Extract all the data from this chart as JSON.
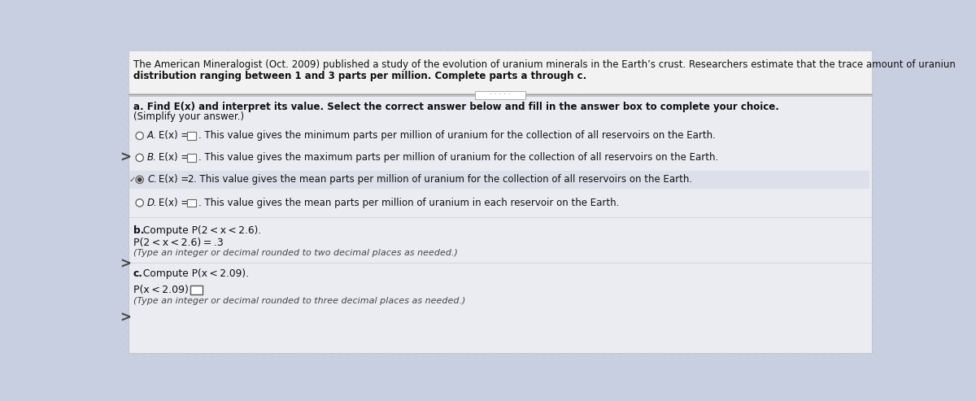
{
  "bg_color": "#c8cfe0",
  "header_bg": "#f2f2f2",
  "content_bg": "#e8eaef",
  "content_bg2": "#d8dce8",
  "divider_color": "#999999",
  "title_line1": "The American Mineralogist (Oct. 2009) published a study of the evolution of uranium minerals in the Earth’s crust. Researchers estimate that the trace amount of uraniun",
  "title_line2": "distribution ranging between 1 and 3 parts per million. Complete parts a through c.",
  "section_a_line1": "a. Find E(x) and interpret its value. Select the correct answer below and fill in the answer box to complete your choice.",
  "section_a_line2": "(Simplify your answer.)",
  "optA_pre": "A.  E(x) = ",
  "optA_post": ". This value gives the minimum parts per million of uranium for the collection of all reservoirs on the Earth.",
  "optB_pre": "B.  E(x) = ",
  "optB_post": ". This value gives the maximum parts per million of uranium for the collection of all reservoirs on the Earth.",
  "optC_pre": "C.  E(x) = 2",
  "optC_post": ". This value gives the mean parts per million of uranium for the collection of all reservoirs on the Earth.",
  "optD_pre": "D.  E(x) = ",
  "optD_post": ". This value gives the mean parts per million of uranium in each reservoir on the Earth.",
  "sec_b_bold": "b.",
  "sec_b_rest": " Compute P(2 < x < 2.6).",
  "sec_b_ans": "P(2 < x < 2.6) = .3",
  "sec_b_note": "(Type an integer or decimal rounded to two decimal places as needed.)",
  "sec_c_bold": "c.",
  "sec_c_rest": " Compute P(x < 2.09).",
  "sec_c_ans_pre": "P(x < 2.09) =",
  "sec_c_note": "(Type an integer or decimal rounded to three decimal places as needed.)",
  "text_color": "#111111",
  "italic_color": "#222222",
  "arrow_color": "#444444",
  "dots_color": "#666666"
}
